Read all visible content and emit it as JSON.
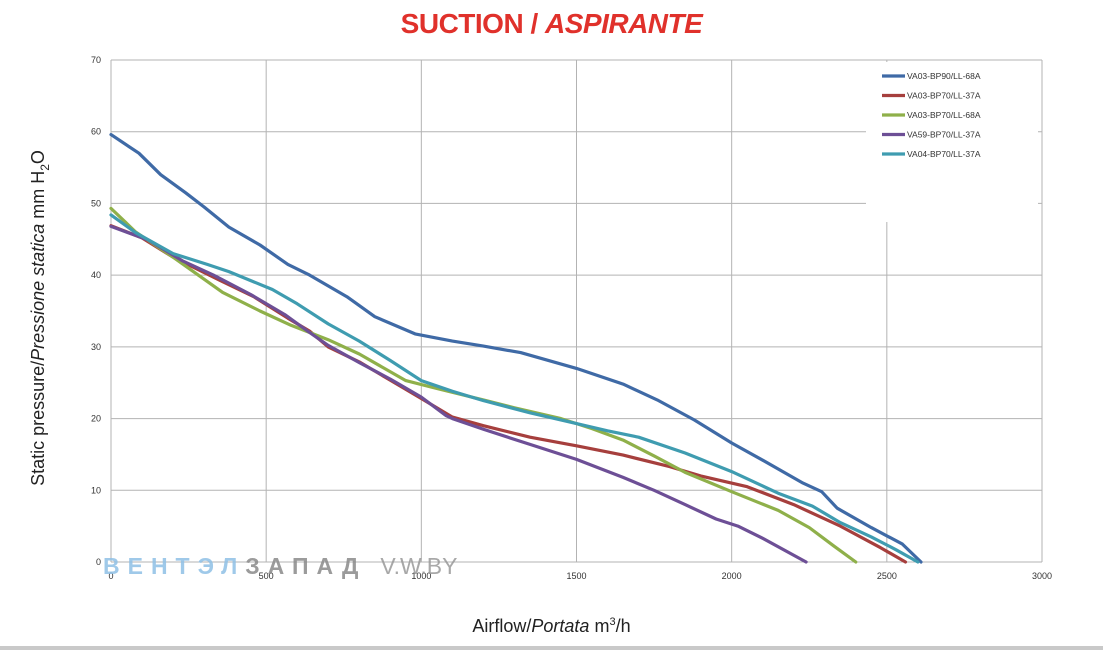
{
  "title": {
    "main": "SUCTION /",
    "italic": "ASPIRANTE"
  },
  "watermark": {
    "part1": "ВЕНТЭЛ",
    "part2": "ЗАПАД",
    "part3": "V.W.BY"
  },
  "colors": {
    "title": "#e0312b",
    "grid": "#b3b3b3"
  },
  "chart_data": {
    "type": "line",
    "title": "SUCTION / ASPIRANTE",
    "ylabel": {
      "main": "Static pressure/",
      "italic": "Pressione statica",
      "unit": " mm  H",
      "sub": "2",
      "tail": "O"
    },
    "xlabel": {
      "main": "Airflow/",
      "italic": "Portata",
      "unit": "  m",
      "sup": "3",
      "tail": "/h"
    },
    "xlim": [
      0,
      3000
    ],
    "ylim": [
      0,
      70
    ],
    "x_ticks": [
      0,
      500,
      1000,
      1500,
      2000,
      2500,
      3000
    ],
    "y_ticks": [
      0,
      10,
      20,
      30,
      40,
      50,
      60,
      70
    ],
    "grid": true,
    "legend_position": "top-right",
    "series": [
      {
        "name": "VA03-BP90/LL-68A",
        "color": "#3f6aa6",
        "points": [
          [
            0,
            59.6
          ],
          [
            90,
            57
          ],
          [
            160,
            54
          ],
          [
            240,
            51.5
          ],
          [
            300,
            49.5
          ],
          [
            380,
            46.7
          ],
          [
            480,
            44.2
          ],
          [
            570,
            41.5
          ],
          [
            640,
            40
          ],
          [
            760,
            37
          ],
          [
            850,
            34.2
          ],
          [
            980,
            31.8
          ],
          [
            1100,
            30.8
          ],
          [
            1200,
            30.1
          ],
          [
            1320,
            29.2
          ],
          [
            1500,
            27
          ],
          [
            1650,
            24.8
          ],
          [
            1760,
            22.6
          ],
          [
            1880,
            19.8
          ],
          [
            2000,
            16.6
          ],
          [
            2100,
            14.2
          ],
          [
            2230,
            11
          ],
          [
            2290,
            9.8
          ],
          [
            2340,
            7.5
          ],
          [
            2450,
            4.8
          ],
          [
            2550,
            2.5
          ],
          [
            2610,
            0
          ]
        ]
      },
      {
        "name": "VA03-BP70/LL-37A",
        "color": "#a63f3d",
        "points": [
          [
            0,
            46.9
          ],
          [
            100,
            45.2
          ],
          [
            200,
            42.5
          ],
          [
            350,
            39.3
          ],
          [
            460,
            37
          ],
          [
            570,
            34
          ],
          [
            640,
            32.2
          ],
          [
            700,
            30
          ],
          [
            800,
            27.9
          ],
          [
            1000,
            22.8
          ],
          [
            1100,
            20.2
          ],
          [
            1200,
            19
          ],
          [
            1350,
            17.4
          ],
          [
            1500,
            16.2
          ],
          [
            1650,
            14.9
          ],
          [
            1800,
            13.3
          ],
          [
            1900,
            12
          ],
          [
            2050,
            10.5
          ],
          [
            2200,
            8
          ],
          [
            2350,
            5
          ],
          [
            2480,
            2
          ],
          [
            2560,
            0
          ]
        ]
      },
      {
        "name": "VA03-BP70/LL-68A",
        "color": "#8fb04a",
        "points": [
          [
            0,
            49.3
          ],
          [
            80,
            46
          ],
          [
            200,
            42.5
          ],
          [
            360,
            37.6
          ],
          [
            480,
            35
          ],
          [
            580,
            33
          ],
          [
            700,
            31
          ],
          [
            800,
            29
          ],
          [
            950,
            25.3
          ],
          [
            1050,
            24.2
          ],
          [
            1200,
            22.6
          ],
          [
            1300,
            21.5
          ],
          [
            1450,
            20
          ],
          [
            1550,
            18.6
          ],
          [
            1650,
            17
          ],
          [
            1750,
            14.8
          ],
          [
            1850,
            12.5
          ],
          [
            2000,
            9.8
          ],
          [
            2150,
            7.2
          ],
          [
            2250,
            4.8
          ],
          [
            2330,
            2.2
          ],
          [
            2400,
            0
          ]
        ]
      },
      {
        "name": "VA59-BP70/LL-37A",
        "color": "#6d4f96",
        "points": [
          [
            0,
            46.8
          ],
          [
            120,
            44.9
          ],
          [
            230,
            42
          ],
          [
            330,
            40
          ],
          [
            450,
            37.3
          ],
          [
            560,
            34.5
          ],
          [
            640,
            32
          ],
          [
            700,
            30.2
          ],
          [
            800,
            27.8
          ],
          [
            900,
            25.5
          ],
          [
            1000,
            23
          ],
          [
            1080,
            20.4
          ],
          [
            1100,
            20
          ],
          [
            1200,
            18.5
          ],
          [
            1350,
            16.4
          ],
          [
            1500,
            14.3
          ],
          [
            1650,
            11.8
          ],
          [
            1750,
            10
          ],
          [
            1850,
            8
          ],
          [
            1950,
            6
          ],
          [
            2020,
            5
          ],
          [
            2100,
            3.3
          ],
          [
            2240,
            0
          ]
        ]
      },
      {
        "name": "VA04-BP70/LL-37A",
        "color": "#3f9cb0",
        "points": [
          [
            0,
            48.4
          ],
          [
            80,
            45.9
          ],
          [
            200,
            43
          ],
          [
            310,
            41.5
          ],
          [
            380,
            40.5
          ],
          [
            520,
            38
          ],
          [
            600,
            36
          ],
          [
            700,
            33.2
          ],
          [
            800,
            30.8
          ],
          [
            900,
            28.1
          ],
          [
            1000,
            25.3
          ],
          [
            1100,
            23.8
          ],
          [
            1200,
            22.5
          ],
          [
            1350,
            20.8
          ],
          [
            1500,
            19.3
          ],
          [
            1600,
            18.3
          ],
          [
            1700,
            17.4
          ],
          [
            1850,
            15.2
          ],
          [
            2000,
            12.6
          ],
          [
            2150,
            9.6
          ],
          [
            2260,
            7.8
          ],
          [
            2350,
            5.5
          ],
          [
            2450,
            3.5
          ],
          [
            2530,
            1.7
          ],
          [
            2600,
            0
          ]
        ]
      }
    ]
  }
}
